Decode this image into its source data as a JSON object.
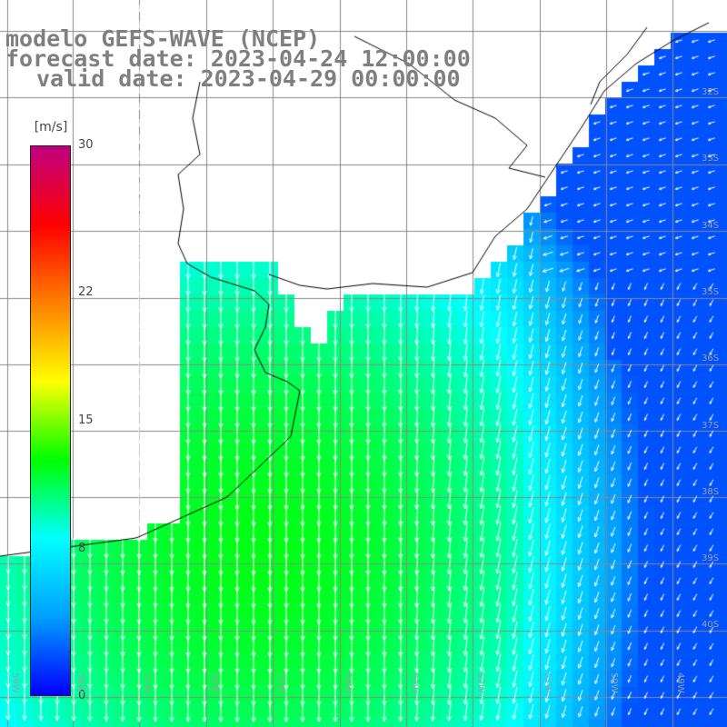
{
  "titles": {
    "model": "modelo GEFS-WAVE (NCEP)",
    "forecast": "forecast date: 2023-04-24 12:00:00",
    "valid": "valid date: 2023-04-29 00:00:00"
  },
  "colorbar": {
    "unit": "[m/s]",
    "min": 0,
    "max": 30,
    "ticks": [
      {
        "value": 30,
        "label": "30"
      },
      {
        "value": 22,
        "label": "22"
      },
      {
        "value": 15,
        "label": "15"
      },
      {
        "value": 8,
        "label": "8"
      },
      {
        "value": 0,
        "label": "0"
      }
    ]
  },
  "colors": {
    "land": "#ffffff",
    "coastline": "#000000",
    "grid": "#888888",
    "arrows": "#ffffff",
    "title": "#7f7f7f",
    "scale": [
      "#0000ff",
      "#00a0ff",
      "#00ffff",
      "#00ff00",
      "#ffff00",
      "#ff8000",
      "#ff0000",
      "#c0007f"
    ]
  },
  "map": {
    "lon_range": [
      -60,
      -49
    ],
    "lat_range": [
      -30,
      -40
    ],
    "lat_labels": [
      "32S",
      "33S",
      "34S",
      "35S",
      "36S",
      "37S",
      "38S",
      "39S",
      "40S"
    ],
    "lon_labels": [
      "59W",
      "58W",
      "57W",
      "56W",
      "55W",
      "54W",
      "53W",
      "52W",
      "51W",
      "50W",
      "49W"
    ]
  }
}
